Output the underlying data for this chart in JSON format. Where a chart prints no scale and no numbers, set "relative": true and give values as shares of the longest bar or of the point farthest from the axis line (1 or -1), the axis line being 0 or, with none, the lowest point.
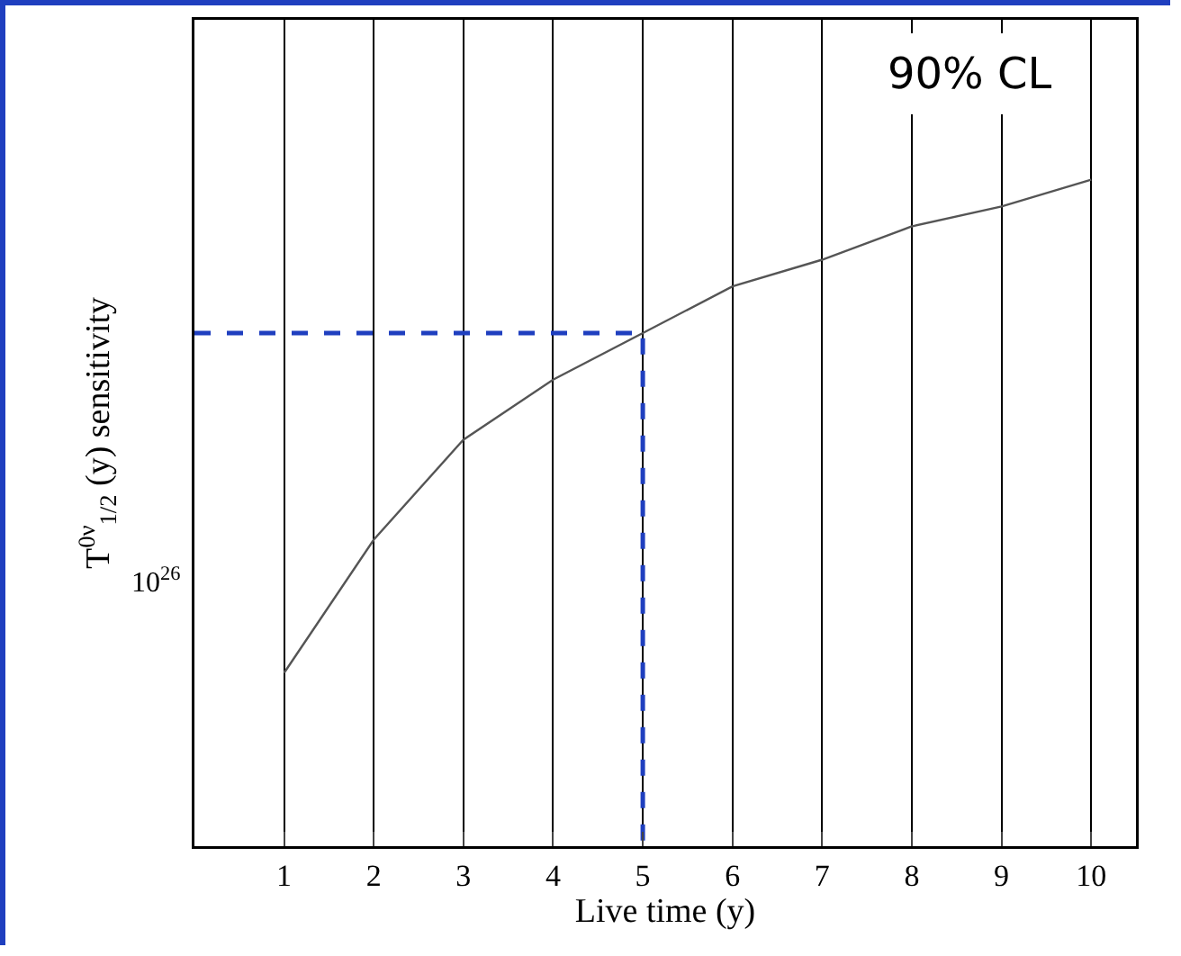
{
  "chart_data": {
    "type": "line",
    "xlabel": "Live time (y)",
    "ylabel": "T$^{0ν}$$_{1/2}$ (y) sensitivity",
    "relative": true,
    "grid": "x",
    "marker": "none",
    "xlim": [
      0,
      10.5
    ],
    "xticks": [
      1,
      2,
      3,
      4,
      5,
      6,
      7,
      8,
      9,
      10
    ],
    "annotations": [
      "90% CL",
      "10$^{26}$"
    ],
    "series": [
      {
        "color": "#555555",
        "line_style": "solid",
        "x": [
          1,
          2,
          3,
          4,
          5,
          6,
          7,
          8,
          9,
          10
        ],
        "values": [
          0.26,
          0.46,
          0.61,
          0.7,
          0.77,
          0.84,
          0.88,
          0.93,
          0.96,
          1
        ]
      },
      {
        "color": "#1f3fbf",
        "line_style": "dashed",
        "x": [
          0,
          5,
          5
        ],
        "values": [
          0.77,
          0.77,
          0
        ]
      }
    ]
  }
}
